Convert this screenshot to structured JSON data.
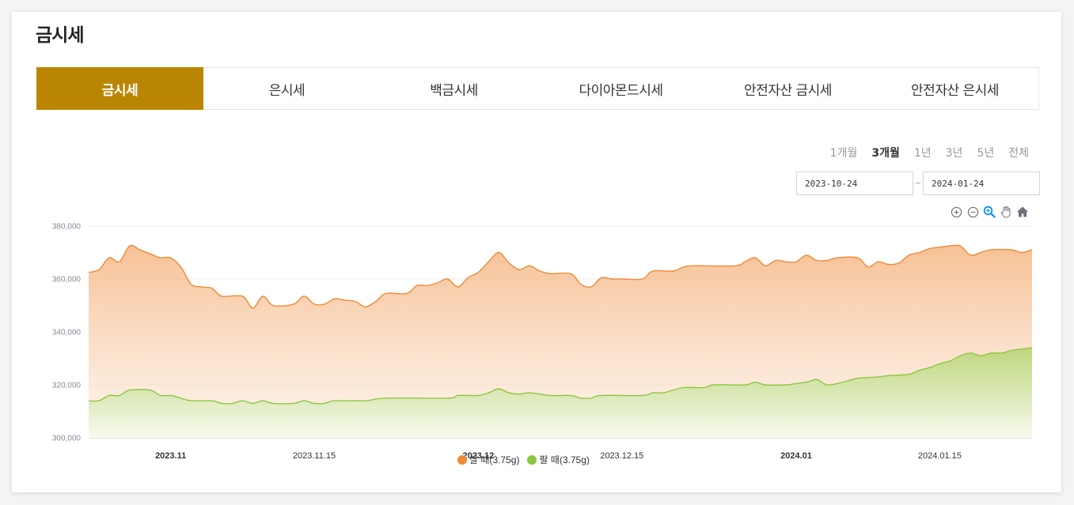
{
  "page": {
    "title": "금시세"
  },
  "tabs": [
    {
      "label": "금시세",
      "active": true
    },
    {
      "label": "은시세",
      "active": false
    },
    {
      "label": "백금시세",
      "active": false
    },
    {
      "label": "다이아몬드시세",
      "active": false
    },
    {
      "label": "안전자산 금시세",
      "active": false
    },
    {
      "label": "안전자산 은시세",
      "active": false
    }
  ],
  "periods": [
    {
      "label": "1개월",
      "active": false
    },
    {
      "label": "3개월",
      "active": true
    },
    {
      "label": "1년",
      "active": false
    },
    {
      "label": "3년",
      "active": false
    },
    {
      "label": "5년",
      "active": false
    },
    {
      "label": "전체",
      "active": false
    }
  ],
  "date_range": {
    "start": "2023-10-24",
    "separator": "~",
    "end": "2024-01-24"
  },
  "toolbar": [
    "zoom-in-icon",
    "zoom-out-icon",
    "selection-zoom-icon",
    "pan-hand-icon",
    "home-reset-icon"
  ],
  "colors": {
    "accent": "#bb8504",
    "buy": "#ef8a35",
    "sell": "#8dc63f",
    "grid": "#e8e8e8"
  },
  "chart_data": {
    "type": "area",
    "title": "",
    "xlabel": "",
    "ylabel": "",
    "ylim": [
      300000,
      380000
    ],
    "yticks": [
      300000,
      320000,
      340000,
      360000,
      380000
    ],
    "ytick_labels": [
      "300,000",
      "320,000",
      "340,000",
      "360,000",
      "380,000"
    ],
    "xlim": [
      "2023-10-24",
      "2024-01-24"
    ],
    "xticks": [
      {
        "label": "2023.11",
        "date": "2023-11-01",
        "bold": true
      },
      {
        "label": "2023.11.15",
        "date": "2023-11-15",
        "bold": false
      },
      {
        "label": "2023.12",
        "date": "2023-12-01",
        "bold": true
      },
      {
        "label": "2023.12.15",
        "date": "2023-12-15",
        "bold": false
      },
      {
        "label": "2024.01",
        "date": "2024-01-01",
        "bold": true
      },
      {
        "label": "2024.01.15",
        "date": "2024-01-15",
        "bold": false
      }
    ],
    "grid": true,
    "legend_position": "bottom",
    "series": [
      {
        "name": "살 때(3.75g)",
        "color": "#ef8a35",
        "points": [
          [
            "2023-10-24",
            362500
          ],
          [
            "2023-10-25",
            363500
          ],
          [
            "2023-10-26",
            368000
          ],
          [
            "2023-10-27",
            366500
          ],
          [
            "2023-10-28",
            372500
          ],
          [
            "2023-10-29",
            371000
          ],
          [
            "2023-10-30",
            369500
          ],
          [
            "2023-10-31",
            368000
          ],
          [
            "2023-11-01",
            368000
          ],
          [
            "2023-11-02",
            364500
          ],
          [
            "2023-11-03",
            358000
          ],
          [
            "2023-11-04",
            357000
          ],
          [
            "2023-11-05",
            356500
          ],
          [
            "2023-11-06",
            353500
          ],
          [
            "2023-11-08",
            353500
          ],
          [
            "2023-11-09",
            349000
          ],
          [
            "2023-11-10",
            353500
          ],
          [
            "2023-11-11",
            350000
          ],
          [
            "2023-11-13",
            350500
          ],
          [
            "2023-11-14",
            353500
          ],
          [
            "2023-11-15",
            350500
          ],
          [
            "2023-11-16",
            350500
          ],
          [
            "2023-11-17",
            352500
          ],
          [
            "2023-11-18",
            352000
          ],
          [
            "2023-11-19",
            351500
          ],
          [
            "2023-11-20",
            349500
          ],
          [
            "2023-11-21",
            351500
          ],
          [
            "2023-11-22",
            354500
          ],
          [
            "2023-11-24",
            354500
          ],
          [
            "2023-11-25",
            357500
          ],
          [
            "2023-11-26",
            357500
          ],
          [
            "2023-11-27",
            358500
          ],
          [
            "2023-11-28",
            360000
          ],
          [
            "2023-11-29",
            357000
          ],
          [
            "2023-11-30",
            360500
          ],
          [
            "2023-12-01",
            362500
          ],
          [
            "2023-12-02",
            366500
          ],
          [
            "2023-12-03",
            370000
          ],
          [
            "2023-12-04",
            366000
          ],
          [
            "2023-12-05",
            363500
          ],
          [
            "2023-12-06",
            365000
          ],
          [
            "2023-12-07",
            363000
          ],
          [
            "2023-12-08",
            362000
          ],
          [
            "2023-12-10",
            362000
          ],
          [
            "2023-12-11",
            358000
          ],
          [
            "2023-12-12",
            357000
          ],
          [
            "2023-12-13",
            360500
          ],
          [
            "2023-12-14",
            360000
          ],
          [
            "2023-12-15",
            360000
          ],
          [
            "2023-12-17",
            360000
          ],
          [
            "2023-12-18",
            363000
          ],
          [
            "2023-12-20",
            363000
          ],
          [
            "2023-12-21",
            364500
          ],
          [
            "2023-12-22",
            365000
          ],
          [
            "2023-12-26",
            365000
          ],
          [
            "2023-12-27",
            366500
          ],
          [
            "2023-12-28",
            368000
          ],
          [
            "2023-12-29",
            365000
          ],
          [
            "2023-12-30",
            367000
          ],
          [
            "2023-12-31",
            366500
          ],
          [
            "2024-01-01",
            366500
          ],
          [
            "2024-01-02",
            369000
          ],
          [
            "2024-01-03",
            367000
          ],
          [
            "2024-01-04",
            367000
          ],
          [
            "2024-01-05",
            368000
          ],
          [
            "2024-01-07",
            368000
          ],
          [
            "2024-01-08",
            364500
          ],
          [
            "2024-01-09",
            366500
          ],
          [
            "2024-01-10",
            365500
          ],
          [
            "2024-01-11",
            366000
          ],
          [
            "2024-01-12",
            369000
          ],
          [
            "2024-01-13",
            370000
          ],
          [
            "2024-01-14",
            371500
          ],
          [
            "2024-01-15",
            372000
          ],
          [
            "2024-01-16",
            372500
          ],
          [
            "2024-01-17",
            372500
          ],
          [
            "2024-01-18",
            369000
          ],
          [
            "2024-01-19",
            370000
          ],
          [
            "2024-01-20",
            371000
          ],
          [
            "2024-01-22",
            371000
          ],
          [
            "2024-01-23",
            370000
          ],
          [
            "2024-01-24",
            371000
          ]
        ]
      },
      {
        "name": "팔 때(3.75g)",
        "color": "#8dc63f",
        "points": [
          [
            "2023-10-24",
            314000
          ],
          [
            "2023-10-25",
            314000
          ],
          [
            "2023-10-26",
            316000
          ],
          [
            "2023-10-27",
            316000
          ],
          [
            "2023-10-28",
            318000
          ],
          [
            "2023-10-30",
            318000
          ],
          [
            "2023-10-31",
            316000
          ],
          [
            "2023-11-01",
            316000
          ],
          [
            "2023-11-02",
            315000
          ],
          [
            "2023-11-03",
            314000
          ],
          [
            "2023-11-05",
            314000
          ],
          [
            "2023-11-06",
            313000
          ],
          [
            "2023-11-07",
            313000
          ],
          [
            "2023-11-08",
            314000
          ],
          [
            "2023-11-09",
            313000
          ],
          [
            "2023-11-10",
            314000
          ],
          [
            "2023-11-11",
            313000
          ],
          [
            "2023-11-13",
            313000
          ],
          [
            "2023-11-14",
            314000
          ],
          [
            "2023-11-15",
            313000
          ],
          [
            "2023-11-16",
            313000
          ],
          [
            "2023-11-17",
            314000
          ],
          [
            "2023-11-20",
            314000
          ],
          [
            "2023-11-22",
            315000
          ],
          [
            "2023-11-28",
            315000
          ],
          [
            "2023-11-29",
            316000
          ],
          [
            "2023-12-01",
            316000
          ],
          [
            "2023-12-02",
            317000
          ],
          [
            "2023-12-03",
            318500
          ],
          [
            "2023-12-04",
            317000
          ],
          [
            "2023-12-05",
            316500
          ],
          [
            "2023-12-06",
            317000
          ],
          [
            "2023-12-08",
            316000
          ],
          [
            "2023-12-10",
            316000
          ],
          [
            "2023-12-11",
            315000
          ],
          [
            "2023-12-12",
            315000
          ],
          [
            "2023-12-13",
            316000
          ],
          [
            "2023-12-17",
            316000
          ],
          [
            "2023-12-18",
            317000
          ],
          [
            "2023-12-19",
            317000
          ],
          [
            "2023-12-20",
            318000
          ],
          [
            "2023-12-21",
            319000
          ],
          [
            "2023-12-23",
            319000
          ],
          [
            "2023-12-24",
            320000
          ],
          [
            "2023-12-27",
            320000
          ],
          [
            "2023-12-28",
            321000
          ],
          [
            "2023-12-29",
            320000
          ],
          [
            "2023-12-31",
            320000
          ],
          [
            "2024-01-01",
            320500
          ],
          [
            "2024-01-02",
            321000
          ],
          [
            "2024-01-03",
            322000
          ],
          [
            "2024-01-04",
            320000
          ],
          [
            "2024-01-05",
            320500
          ],
          [
            "2024-01-06",
            321500
          ],
          [
            "2024-01-07",
            322500
          ],
          [
            "2024-01-09",
            323000
          ],
          [
            "2024-01-10",
            323500
          ],
          [
            "2024-01-12",
            324000
          ],
          [
            "2024-01-13",
            325500
          ],
          [
            "2024-01-14",
            326500
          ],
          [
            "2024-01-15",
            328000
          ],
          [
            "2024-01-16",
            329000
          ],
          [
            "2024-01-17",
            331000
          ],
          [
            "2024-01-18",
            332000
          ],
          [
            "2024-01-19",
            331000
          ],
          [
            "2024-01-20",
            332000
          ],
          [
            "2024-01-21",
            332000
          ],
          [
            "2024-01-22",
            333000
          ],
          [
            "2024-01-23",
            333500
          ],
          [
            "2024-01-24",
            334000
          ]
        ]
      }
    ]
  }
}
